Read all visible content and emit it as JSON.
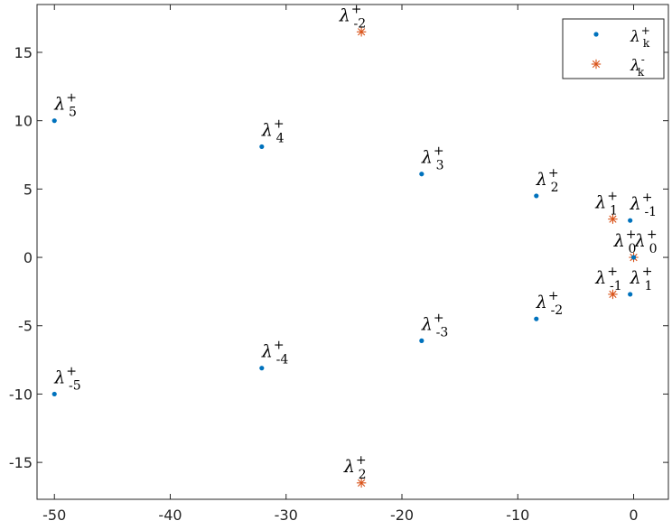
{
  "chart_data": {
    "type": "scatter",
    "title": "",
    "xlabel": "",
    "ylabel": "",
    "xlim": [
      -51.5,
      3
    ],
    "ylim": [
      -17.7,
      18.5
    ],
    "grid": false,
    "legend_position": "top-right",
    "x_ticks": [
      -50,
      -40,
      -30,
      -20,
      -10,
      0
    ],
    "x_tick_labels": [
      "-50",
      "-40",
      "-30",
      "-20",
      "-10",
      "0"
    ],
    "y_ticks": [
      15,
      10,
      5,
      0,
      -5,
      -10,
      -15
    ],
    "y_tick_labels": [
      "15",
      "10",
      "5",
      "0",
      "-5",
      "-10",
      "-15"
    ],
    "series": [
      {
        "name": "λk+",
        "label_base": "λ",
        "label_sub": "k",
        "label_sup": "+",
        "marker": "dot",
        "color": "#0072BD",
        "points": [
          {
            "x": -50.0,
            "y": 10.0
          },
          {
            "x": -50.0,
            "y": -10.0
          },
          {
            "x": -32.1,
            "y": 8.1
          },
          {
            "x": -32.1,
            "y": -8.1
          },
          {
            "x": -18.3,
            "y": 6.1
          },
          {
            "x": -18.3,
            "y": -6.1
          },
          {
            "x": -8.4,
            "y": 4.5
          },
          {
            "x": -8.4,
            "y": -4.5
          },
          {
            "x": -0.3,
            "y": 2.7
          },
          {
            "x": -0.3,
            "y": -2.7
          },
          {
            "x": 0.0,
            "y": 0.0
          }
        ]
      },
      {
        "name": "λk-",
        "label_base": "λ",
        "label_sub": "k",
        "label_sup": "-",
        "marker": "asterisk",
        "color": "#D95319",
        "points": [
          {
            "x": -23.5,
            "y": 16.5
          },
          {
            "x": -23.5,
            "y": -16.5
          },
          {
            "x": -1.8,
            "y": 2.8
          },
          {
            "x": -1.8,
            "y": -2.7
          },
          {
            "x": 0.0,
            "y": 0.0
          }
        ]
      }
    ],
    "annotations": [
      {
        "base": "λ",
        "sup": "+",
        "sub": "5",
        "x": -50.0,
        "y": 10.0
      },
      {
        "base": "λ",
        "sup": "+",
        "sub": "-5",
        "x": -50.0,
        "y": -10.0
      },
      {
        "base": "λ",
        "sup": "+",
        "sub": "4",
        "x": -32.1,
        "y": 8.1
      },
      {
        "base": "λ",
        "sup": "+",
        "sub": "-4",
        "x": -32.1,
        "y": -8.1
      },
      {
        "base": "λ",
        "sup": "+",
        "sub": "3",
        "x": -18.3,
        "y": 6.1
      },
      {
        "base": "λ",
        "sup": "+",
        "sub": "-3",
        "x": -18.3,
        "y": -6.1
      },
      {
        "base": "λ",
        "sup": "+",
        "sub": "2",
        "x": -8.4,
        "y": 4.5
      },
      {
        "base": "λ",
        "sup": "+",
        "sub": "-2",
        "x": -8.4,
        "y": -4.5
      },
      {
        "base": "λ",
        "sup": "+",
        "sub": "-2",
        "x": -25.4,
        "y": 16.5
      },
      {
        "base": "λ",
        "sup": "+",
        "sub": "2",
        "x": -25.0,
        "y": -16.5
      },
      {
        "base": "λ",
        "sup": "+",
        "sub": "1",
        "x": -3.3,
        "y": 2.8
      },
      {
        "base": "λ",
        "sup": "+",
        "sub": "-1",
        "x": -0.3,
        "y": 2.7
      },
      {
        "base": "λ",
        "sup": "+",
        "sub": "0",
        "x": -1.7,
        "y": 0.0
      },
      {
        "base": "λ",
        "sup": "+",
        "sub": "0",
        "x": 0.1,
        "y": 0.0
      },
      {
        "base": "λ",
        "sup": "+",
        "sub": "-1",
        "x": -3.3,
        "y": -2.7
      },
      {
        "base": "λ",
        "sup": "+",
        "sub": "1",
        "x": -0.3,
        "y": -2.7
      }
    ]
  }
}
